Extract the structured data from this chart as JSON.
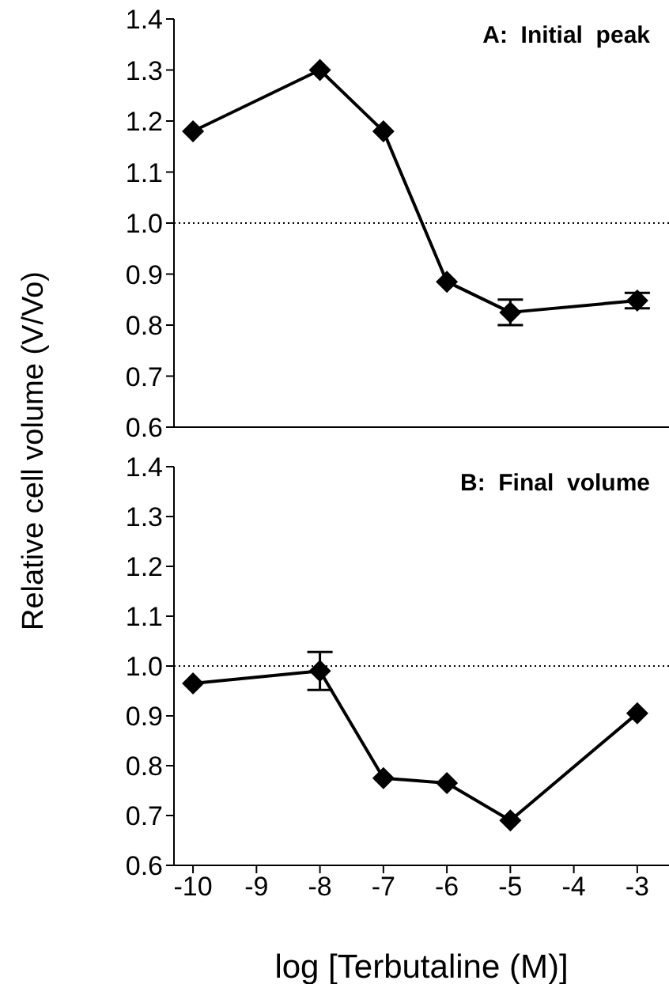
{
  "chart_data": [
    {
      "type": "line",
      "ylabel": "Relative cell volume (V/Vo)",
      "annotations": [
        "A:  Initial  peak"
      ],
      "x": [
        -10,
        -8,
        -7,
        -6,
        -5,
        -3
      ],
      "series": [
        {
          "color": "#000000",
          "values": [
            1.18,
            1.3,
            1.18,
            0.885,
            0.825,
            0.848
          ],
          "errors": [
            null,
            null,
            null,
            null,
            0.025,
            0.015
          ]
        }
      ],
      "xlim": [
        -10.3,
        -2.5
      ],
      "xticks": [
        -10,
        -9,
        -8,
        -7,
        -6,
        -5,
        -4,
        -3
      ],
      "ylim": [
        0.6,
        1.4
      ],
      "yticks": [
        0.6,
        0.7,
        0.8,
        0.9,
        {
          "value": 1,
          "label": "1.0"
        },
        1.1,
        1.2,
        1.3,
        1.4
      ],
      "tick_labels": "y",
      "ref_lines": [
        {
          "axis": "y",
          "value": 1,
          "line_style": "dotted"
        }
      ],
      "marker": "diamond",
      "line_style": "solid",
      "grid": false,
      "legend": false
    },
    {
      "type": "line",
      "xlabel": "log [Terbutaline (M)]",
      "annotations": [
        "B:  Final  volume"
      ],
      "x": [
        -10,
        -8,
        -7,
        -6,
        -5,
        -3
      ],
      "series": [
        {
          "color": "#000000",
          "values": [
            0.965,
            0.99,
            0.775,
            0.765,
            0.69,
            0.905
          ],
          "errors": [
            null,
            0.038,
            null,
            null,
            null,
            null
          ]
        }
      ],
      "xlim": [
        -10.3,
        -2.5
      ],
      "xticks": [
        -10,
        -9,
        -8,
        -7,
        -6,
        -5,
        -4,
        -3
      ],
      "ylim": [
        0.6,
        1.4
      ],
      "yticks": [
        0.6,
        0.7,
        0.8,
        0.9,
        {
          "value": 1,
          "label": "1.0"
        },
        1.1,
        1.2,
        1.3,
        1.4
      ],
      "ref_lines": [
        {
          "axis": "y",
          "value": 1,
          "line_style": "dotted"
        }
      ],
      "marker": "diamond",
      "line_style": "solid",
      "grid": false,
      "legend": false
    }
  ]
}
